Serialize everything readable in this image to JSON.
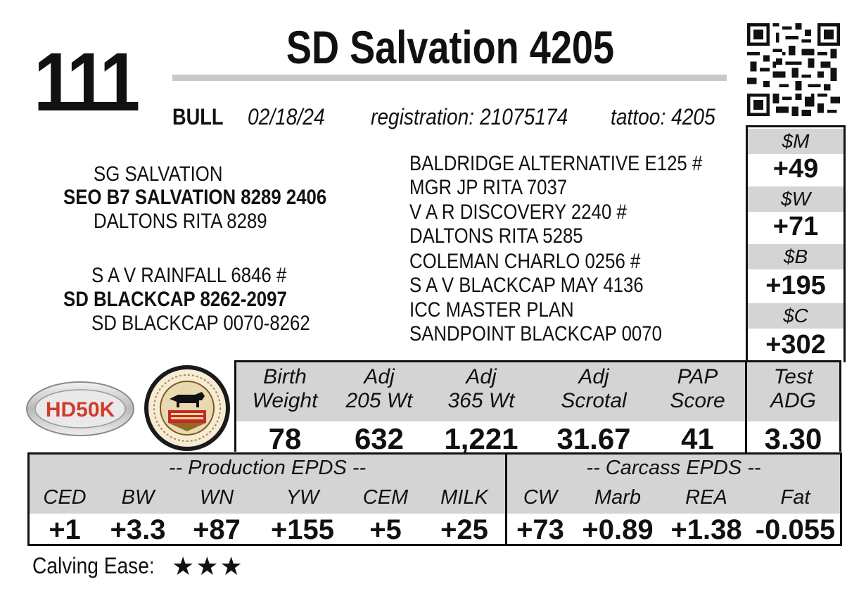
{
  "lot_number": "111",
  "title": "SD Salvation 4205",
  "animal": {
    "type": "BULL",
    "birth_date": "02/18/24",
    "registration": "registration:  21075174",
    "tattoo": "tattoo: 4205"
  },
  "pedigree": {
    "sire_sire": "SG SALVATION",
    "sire": "SEO B7 SALVATION 8289 2406",
    "sire_dam": "DALTONS RITA 8289",
    "dam_sire": "S A V RAINFALL 6846 #",
    "dam": "SD BLACKCAP 8262-2097",
    "dam_dam": "SD BLACKCAP 0070-8262",
    "extended": [
      "BALDRIDGE ALTERNATIVE E125 #",
      "MGR JP RITA 7037",
      "V A R DISCOVERY 2240 #",
      "DALTONS RITA 5285",
      "COLEMAN CHARLO 0256 #",
      "S A V BLACKCAP MAY 4136",
      "ICC MASTER PLAN",
      "SANDPOINT BLACKCAP 0070"
    ]
  },
  "indexes": [
    {
      "label": "$M",
      "value": "+49"
    },
    {
      "label": "$W",
      "value": "+71"
    },
    {
      "label": "$B",
      "value": "+195"
    },
    {
      "label": "$C",
      "value": "+302"
    }
  ],
  "logos": {
    "hd50k": "HD50K",
    "seal_icon": "certified-angus-seal-icon",
    "hd50k_icon": "hd50k-logo-icon"
  },
  "performance": {
    "headers": [
      [
        "Birth",
        "Weight"
      ],
      [
        "Adj",
        "205 Wt"
      ],
      [
        "Adj",
        "365 Wt"
      ],
      [
        "Adj",
        "Scrotal"
      ],
      [
        "PAP",
        "Score"
      ],
      [
        "Test",
        "ADG"
      ]
    ],
    "values": [
      "78",
      "632",
      "1,221",
      "31.67",
      "41",
      "3.30"
    ]
  },
  "epds": {
    "production_title": "-- Production EPDS --",
    "carcass_title": "-- Carcass EPDS --",
    "headers": [
      "CED",
      "BW",
      "WN",
      "YW",
      "CEM",
      "MILK",
      "CW",
      "Marb",
      "REA",
      "Fat"
    ],
    "values": [
      "+1",
      "+3.3",
      "+87",
      "+155",
      "+5",
      "+25",
      "+73",
      "+0.89",
      "+1.38",
      "-0.055"
    ]
  },
  "calving_ease": {
    "label": "Calving Ease:",
    "stars": "★★★",
    "rating": 3
  },
  "colors": {
    "header_gray": "#d4d4d4",
    "border": "#111111"
  }
}
